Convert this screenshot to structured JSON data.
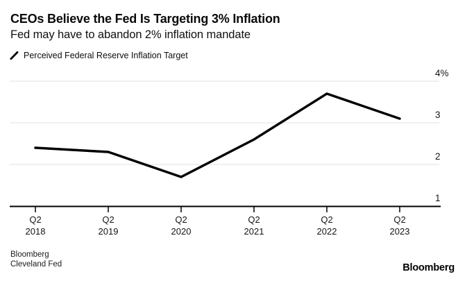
{
  "header": {
    "title": "CEOs Believe the Fed Is Targeting 3% Inflation",
    "subtitle": "Fed may have to abandon 2% inflation mandate"
  },
  "legend": {
    "series_label": "Perceived Federal Reserve Inflation Target",
    "swatch_color": "#000000"
  },
  "chart_data": {
    "type": "line",
    "categories": [
      "Q2 2018",
      "Q2 2019",
      "Q2 2020",
      "Q2 2021",
      "Q2 2022",
      "Q2 2023"
    ],
    "series": [
      {
        "name": "Perceived Federal Reserve Inflation Target",
        "values": [
          2.4,
          2.3,
          1.7,
          2.6,
          3.7,
          3.1
        ],
        "color": "#000000"
      }
    ],
    "title": "CEOs Believe the Fed Is Targeting 3% Inflation",
    "subtitle": "Fed may have to abandon 2% inflation mandate",
    "xlabel": "",
    "ylabel": "",
    "ylim": [
      1,
      4
    ],
    "yticks": [
      1,
      2,
      3,
      4
    ],
    "ytick_labels": [
      "1",
      "2",
      "3",
      "4%"
    ],
    "grid": "horizontal",
    "grid_color": "#e2e2e2",
    "axis_color": "#000000",
    "legend_position": "top-left"
  },
  "footer": {
    "source_line1": "Bloomberg",
    "source_line2": "Cleveland Fed",
    "brand": "Bloomberg"
  }
}
